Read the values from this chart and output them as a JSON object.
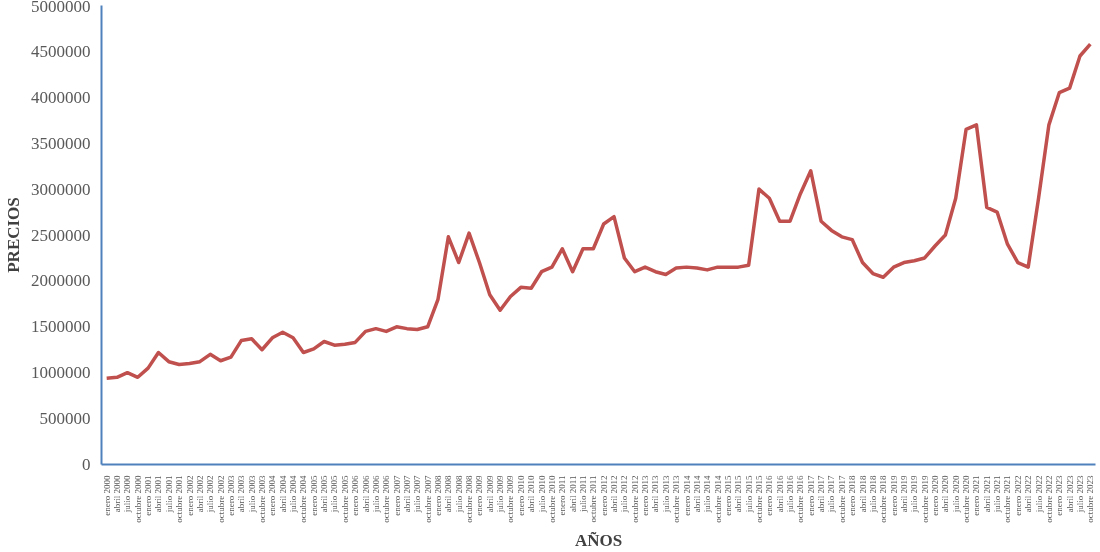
{
  "chart_data": {
    "type": "line",
    "xlabel": "AÑOS",
    "ylabel": "PRECIOS",
    "categories": [
      "enero 2000",
      "abril 2000",
      "julio 2000",
      "octubre 2000",
      "enero 2001",
      "abril 2001",
      "julio 2001",
      "octubre 2001",
      "enero 2002",
      "abril 2002",
      "julio 2002",
      "octubre 2002",
      "enero 2003",
      "abril 2003",
      "julio 2003",
      "octubre 2003",
      "enero 2004",
      "abril 2004",
      "julio 2004",
      "octubre 2004",
      "enero 2005",
      "abril 2005",
      "julio 2005",
      "octubre 2005",
      "enero 2006",
      "abril 2006",
      "julio 2006",
      "octubre 2006",
      "enero 2007",
      "abril 2007",
      "julio 2007",
      "octubre 2007",
      "enero 2008",
      "abril 2008",
      "julio 2008",
      "octubre 2008",
      "enero 2009",
      "abril 2009",
      "julio 2009",
      "octubre 2009",
      "enero 2010",
      "abril 2010",
      "julio 2010",
      "octubre 2010",
      "enero 2011",
      "abril 2011",
      "julio 2011",
      "octubre 2011",
      "enero 2012",
      "abril 2012",
      "julio 2012",
      "octubre 2012",
      "enero 2013",
      "abril 2013",
      "julio 2013",
      "octubre 2013",
      "enero 2014",
      "abril 2014",
      "julio 2014",
      "octubre 2014",
      "enero 2015",
      "abril 2015",
      "julio 2015",
      "octubre 2015",
      "enero 2016",
      "abril 2016",
      "julio 2016",
      "octubre 2016",
      "enero 2017",
      "abril 2017",
      "julio 2017",
      "octubre 2017",
      "enero 2018",
      "abril 2018",
      "julio 2018",
      "octubre 2018",
      "enero 2019",
      "abril 2019",
      "julio 2019",
      "octubre 2019",
      "enero 2020",
      "abril 2020",
      "julio 2020",
      "octubre 2020",
      "enero 2021",
      "abril 2021",
      "julio 2021",
      "octubre 2021",
      "enero 2022",
      "abril 2022",
      "julio 2022",
      "octubre 2022",
      "enero 2023",
      "abril 2023",
      "julio 2023",
      "octubre 2023"
    ],
    "series": [
      {
        "color": "#c0504d",
        "values": [
          940000,
          950000,
          1000000,
          950000,
          1050000,
          1220000,
          1120000,
          1090000,
          1100000,
          1120000,
          1200000,
          1130000,
          1170000,
          1350000,
          1370000,
          1250000,
          1380000,
          1440000,
          1380000,
          1220000,
          1260000,
          1340000,
          1300000,
          1310000,
          1330000,
          1450000,
          1480000,
          1450000,
          1500000,
          1480000,
          1470000,
          1500000,
          1800000,
          2480000,
          2200000,
          2520000,
          2200000,
          1850000,
          1680000,
          1830000,
          1930000,
          1920000,
          2100000,
          2150000,
          2350000,
          2100000,
          2350000,
          2350000,
          2620000,
          2700000,
          2250000,
          2100000,
          2150000,
          2100000,
          2070000,
          2140000,
          2150000,
          2140000,
          2120000,
          2150000,
          2150000,
          2150000,
          2170000,
          3000000,
          2900000,
          2650000,
          2650000,
          2950000,
          3200000,
          2650000,
          2550000,
          2480000,
          2450000,
          2200000,
          2080000,
          2040000,
          2150000,
          2200000,
          2220000,
          2250000,
          2380000,
          2500000,
          2900000,
          3650000,
          3700000,
          2800000,
          2750000,
          2400000,
          2200000,
          2150000,
          2900000,
          3700000,
          4050000,
          4100000,
          4450000,
          4580000
        ]
      }
    ],
    "ylim": [
      0,
      5000000
    ],
    "yticks": [
      0,
      500000,
      1000000,
      1500000,
      2000000,
      2500000,
      3000000,
      3500000,
      4000000,
      4500000,
      5000000
    ],
    "grid": false,
    "line_style": "solid",
    "marker": "none"
  }
}
